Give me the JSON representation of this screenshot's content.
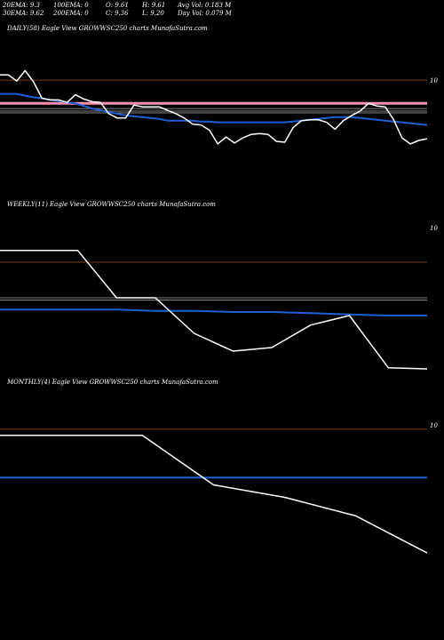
{
  "header": {
    "row1": [
      {
        "label": "20EMA: 9.3"
      },
      {
        "label": "100EMA: 0"
      },
      {
        "label": "O: 9.61"
      },
      {
        "label": "H: 9.61"
      },
      {
        "label": "Avg Vol: 0.183 M"
      }
    ],
    "row2": [
      {
        "label": "30EMA: 9.62"
      },
      {
        "label": "200EMA: 0"
      },
      {
        "label": "C: 9.36"
      },
      {
        "label": "L: 9.20"
      },
      {
        "label": "Day Vol: 0.079 M"
      }
    ]
  },
  "colors": {
    "background": "#000000",
    "price": "#ffffff",
    "ema": "#1f5fd6",
    "pink": "#ff8fb0",
    "brown": "#7a3a1a",
    "grey": "#aaaaaa"
  },
  "chart_data": [
    {
      "type": "line",
      "title": "DAILY(58) Eagle   View  GROWWSC250  charts MunafaSutra.com",
      "ytick_label": "10",
      "ylim": [
        8.6,
        10.3
      ],
      "reference_lines": {
        "brown": 9.99,
        "pink": 9.72,
        "grey": [
          9.66,
          9.63,
          9.61
        ]
      },
      "series": [
        {
          "role": "price",
          "values": [
            10.05,
            10.05,
            9.98,
            10.1,
            9.97,
            9.78,
            9.76,
            9.76,
            9.73,
            9.82,
            9.77,
            9.74,
            9.73,
            9.6,
            9.55,
            9.55,
            9.7,
            9.68,
            9.68,
            9.68,
            9.64,
            9.6,
            9.55,
            9.48,
            9.47,
            9.41,
            9.25,
            9.33,
            9.26,
            9.32,
            9.36,
            9.37,
            9.36,
            9.28,
            9.27,
            9.44,
            9.52,
            9.53,
            9.53,
            9.5,
            9.42,
            9.52,
            9.58,
            9.63,
            9.72,
            9.69,
            9.68,
            9.53,
            9.32,
            9.25,
            9.29,
            9.31
          ]
        },
        {
          "role": "ema",
          "values": [
            9.83,
            9.83,
            9.83,
            9.81,
            9.79,
            9.78,
            9.76,
            9.75,
            9.73,
            9.72,
            9.69,
            9.66,
            9.64,
            9.62,
            9.6,
            9.58,
            9.57,
            9.56,
            9.55,
            9.54,
            9.52,
            9.52,
            9.52,
            9.52,
            9.51,
            9.51,
            9.5,
            9.5,
            9.5,
            9.5,
            9.5,
            9.5,
            9.5,
            9.5,
            9.5,
            9.51,
            9.52,
            9.53,
            9.54,
            9.55,
            9.56,
            9.56,
            9.56,
            9.55,
            9.54,
            9.53,
            9.52,
            9.51,
            9.5,
            9.49,
            9.48,
            9.47
          ]
        }
      ]
    },
    {
      "type": "line",
      "title": "WEEKLY(11) Eagle   View  GROWWSC250  charts MunafaSutra.com",
      "ytick_label": "10",
      "ylim": [
        8.8,
        10.3
      ],
      "reference_lines": {
        "brown": 10.0,
        "grey": [
          9.7,
          9.68
        ]
      },
      "series": [
        {
          "role": "price",
          "values": [
            10.1,
            10.1,
            10.1,
            9.7,
            9.7,
            9.4,
            9.25,
            9.28,
            9.47,
            9.55,
            9.11,
            9.1
          ]
        },
        {
          "role": "ema",
          "values": [
            9.6,
            9.6,
            9.6,
            9.6,
            9.59,
            9.59,
            9.58,
            9.58,
            9.57,
            9.56,
            9.55,
            9.55
          ]
        }
      ]
    },
    {
      "type": "line",
      "title": "MONTHLY(4) Eagle   View  GROWWSC250  charts MunafaSutra.com",
      "ytick_label": "10",
      "ylim": [
        8.8,
        10.2
      ],
      "reference_lines": {
        "brown": 10.0
      },
      "series": [
        {
          "role": "price",
          "values": [
            9.95,
            9.95,
            9.95,
            9.55,
            9.45,
            9.3,
            9.0
          ]
        },
        {
          "role": "ema",
          "values": [
            9.61,
            9.61,
            9.61,
            9.61,
            9.61,
            9.61,
            9.61
          ]
        }
      ]
    }
  ]
}
